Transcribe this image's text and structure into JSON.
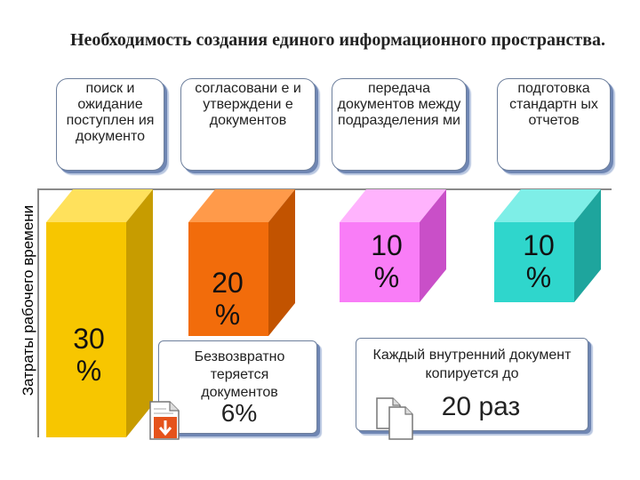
{
  "title": "Необходимость создания единого информационного пространства.",
  "ylabel": "Затраты рабочего времени",
  "colors": {
    "yellow": "#f7c600",
    "orange": "#f26c0b",
    "pink": "#f97df7",
    "teal": "#2fd6cc"
  },
  "categories": [
    {
      "label": "поиск и ожидание поступлен ия документо",
      "value": "30 %"
    },
    {
      "label": "согласовани е и утверждени е документов",
      "value": "20 %"
    },
    {
      "label": "передача документов между подразделения ми",
      "value": "10 %"
    },
    {
      "label": "подготовка стандартн ых отчетов",
      "value": "10 %"
    }
  ],
  "callouts": {
    "lost_text": "Безвозвратно теряется документов",
    "lost_value": "6%",
    "copy_text": "Каждый внутренний документ копируется до",
    "copy_value": "20 раз"
  },
  "icons": {
    "lost": "document-arrow-icon",
    "copy": "copy-documents-icon"
  }
}
